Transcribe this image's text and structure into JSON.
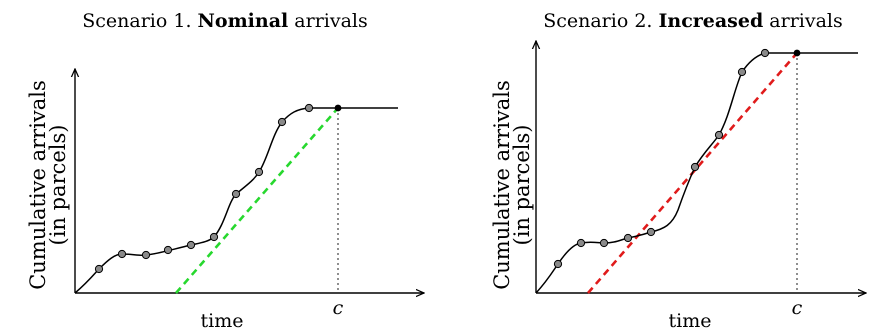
{
  "panels": [
    {
      "title_prefix": "Scenario 1. ",
      "title_bold": "Nominal",
      "title_suffix": " arrivals",
      "xlabel": "time",
      "ylabel_line1": "Cumulative arrivals",
      "ylabel_line2": "(in parcels)",
      "c_label": "c",
      "slope_color": "#27d82e"
    },
    {
      "title_prefix": "Scenario 2. ",
      "title_bold": "Increased",
      "title_suffix": " arrivals",
      "xlabel": "time",
      "ylabel_line1": "Cumulative arrivals",
      "ylabel_line2": "(in parcels)",
      "c_label": "c",
      "slope_color": "#e01b1b"
    }
  ]
}
